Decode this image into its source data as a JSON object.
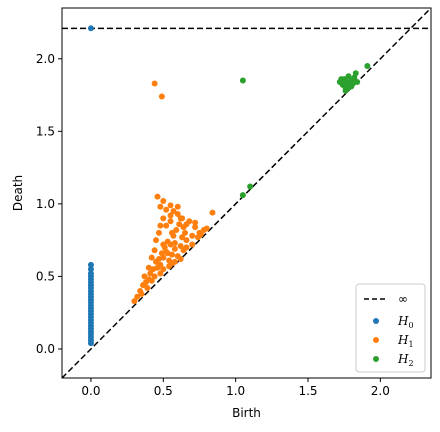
{
  "chart_data": {
    "type": "scatter",
    "title": "",
    "xlabel": "Birth",
    "ylabel": "Death",
    "xlim": [
      -0.2,
      2.35
    ],
    "ylim": [
      -0.2,
      2.35
    ],
    "xticks": [
      0.0,
      0.5,
      1.0,
      1.5,
      2.0
    ],
    "yticks": [
      0.0,
      0.5,
      1.0,
      1.5,
      2.0
    ],
    "xtick_labels": [
      "0.0",
      "0.5",
      "1.0",
      "1.5",
      "2.0"
    ],
    "ytick_labels": [
      "0.0",
      "0.5",
      "1.0",
      "1.5",
      "2.0"
    ],
    "infinity_line": 2.21,
    "legend_position": "lower-right",
    "grid": false,
    "series": [
      {
        "name": "H0",
        "color": "#1f77b4",
        "points": [
          [
            0.0,
            2.21
          ],
          [
            0.0,
            0.58
          ],
          [
            0.0,
            0.55
          ],
          [
            0.0,
            0.52
          ],
          [
            0.0,
            0.5
          ],
          [
            0.0,
            0.48
          ],
          [
            0.0,
            0.46
          ],
          [
            0.0,
            0.44
          ],
          [
            0.0,
            0.42
          ],
          [
            0.0,
            0.4
          ],
          [
            0.0,
            0.38
          ],
          [
            0.0,
            0.36
          ],
          [
            0.0,
            0.34
          ],
          [
            0.0,
            0.32
          ],
          [
            0.0,
            0.3
          ],
          [
            0.0,
            0.28
          ],
          [
            0.0,
            0.26
          ],
          [
            0.0,
            0.24
          ],
          [
            0.0,
            0.22
          ],
          [
            0.0,
            0.2
          ],
          [
            0.0,
            0.18
          ],
          [
            0.0,
            0.16
          ],
          [
            0.0,
            0.14
          ],
          [
            0.0,
            0.12
          ],
          [
            0.0,
            0.1
          ],
          [
            0.0,
            0.08
          ],
          [
            0.0,
            0.06
          ],
          [
            0.0,
            0.04
          ]
        ]
      },
      {
        "name": "H1",
        "color": "#ff7f0e",
        "points": [
          [
            0.44,
            1.83
          ],
          [
            0.49,
            1.74
          ],
          [
            0.3,
            0.33
          ],
          [
            0.32,
            0.36
          ],
          [
            0.34,
            0.4
          ],
          [
            0.35,
            0.38
          ],
          [
            0.36,
            0.44
          ],
          [
            0.38,
            0.46
          ],
          [
            0.39,
            0.42
          ],
          [
            0.4,
            0.48
          ],
          [
            0.41,
            0.52
          ],
          [
            0.42,
            0.47
          ],
          [
            0.43,
            0.55
          ],
          [
            0.44,
            0.5
          ],
          [
            0.45,
            0.6
          ],
          [
            0.46,
            0.56
          ],
          [
            0.47,
            0.62
          ],
          [
            0.48,
            0.58
          ],
          [
            0.49,
            0.66
          ],
          [
            0.5,
            0.63
          ],
          [
            0.51,
            0.7
          ],
          [
            0.52,
            0.67
          ],
          [
            0.53,
            0.74
          ],
          [
            0.54,
            0.61
          ],
          [
            0.55,
            0.72
          ],
          [
            0.56,
            0.65
          ],
          [
            0.57,
            0.78
          ],
          [
            0.58,
            0.69
          ],
          [
            0.59,
            0.82
          ],
          [
            0.6,
            0.64
          ],
          [
            0.61,
            0.86
          ],
          [
            0.62,
            0.71
          ],
          [
            0.63,
            0.9
          ],
          [
            0.64,
            0.68
          ],
          [
            0.65,
            0.8
          ],
          [
            0.66,
            0.75
          ],
          [
            0.68,
            0.88
          ],
          [
            0.7,
            0.78
          ],
          [
            0.72,
            0.84
          ],
          [
            0.75,
            0.8
          ],
          [
            0.78,
            0.82
          ],
          [
            0.8,
            0.83
          ],
          [
            0.84,
            0.94
          ],
          [
            0.46,
            1.05
          ],
          [
            0.48,
            0.98
          ],
          [
            0.5,
            1.02
          ],
          [
            0.52,
            0.96
          ],
          [
            0.55,
            0.92
          ],
          [
            0.57,
            0.95
          ],
          [
            0.6,
            0.93
          ],
          [
            0.62,
            0.9
          ],
          [
            0.45,
            0.75
          ],
          [
            0.47,
            0.8
          ],
          [
            0.52,
            0.85
          ],
          [
            0.55,
            0.88
          ],
          [
            0.58,
            0.6
          ],
          [
            0.62,
            0.62
          ],
          [
            0.66,
            0.7
          ],
          [
            0.7,
            0.72
          ],
          [
            0.74,
            0.77
          ],
          [
            0.48,
            0.52
          ],
          [
            0.5,
            0.55
          ],
          [
            0.54,
            0.57
          ],
          [
            0.56,
            0.59
          ],
          [
            0.53,
            0.66
          ],
          [
            0.58,
            0.73
          ],
          [
            0.63,
            0.77
          ],
          [
            0.44,
            0.68
          ],
          [
            0.5,
            0.72
          ],
          [
            0.56,
            0.8
          ],
          [
            0.42,
            0.63
          ],
          [
            0.4,
            0.56
          ],
          [
            0.37,
            0.5
          ],
          [
            0.55,
            0.99
          ],
          [
            0.6,
            0.98
          ],
          [
            0.5,
            0.9
          ],
          [
            0.48,
            0.85
          ],
          [
            0.66,
            0.86
          ],
          [
            0.72,
            0.87
          ],
          [
            0.76,
            0.79
          ],
          [
            0.64,
            0.84
          ]
        ]
      },
      {
        "name": "H2",
        "color": "#2ca02c",
        "points": [
          [
            1.05,
            1.85
          ],
          [
            1.05,
            1.06
          ],
          [
            1.1,
            1.12
          ],
          [
            1.91,
            1.95
          ],
          [
            1.72,
            1.84
          ],
          [
            1.74,
            1.82
          ],
          [
            1.75,
            1.86
          ],
          [
            1.76,
            1.8
          ],
          [
            1.77,
            1.84
          ],
          [
            1.78,
            1.88
          ],
          [
            1.79,
            1.82
          ],
          [
            1.8,
            1.85
          ],
          [
            1.81,
            1.83
          ],
          [
            1.82,
            1.87
          ],
          [
            1.83,
            1.9
          ],
          [
            1.84,
            1.84
          ],
          [
            1.76,
            1.78
          ],
          [
            1.78,
            1.8
          ],
          [
            1.8,
            1.81
          ],
          [
            1.73,
            1.86
          ]
        ]
      }
    ]
  },
  "legend": {
    "infinity_label": "∞",
    "entries": [
      {
        "label": "H",
        "sub": "0"
      },
      {
        "label": "H",
        "sub": "1"
      },
      {
        "label": "H",
        "sub": "2"
      }
    ]
  }
}
